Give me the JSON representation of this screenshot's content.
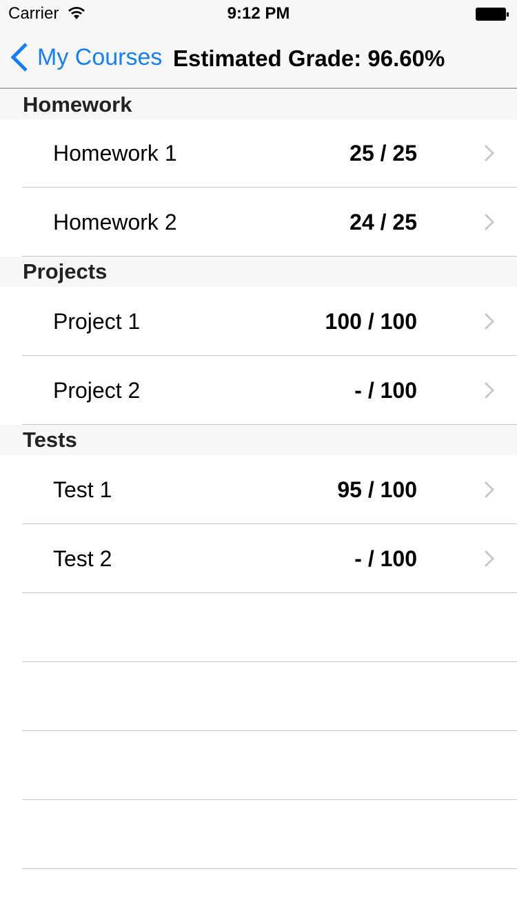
{
  "status_bar": {
    "carrier": "Carrier",
    "time": "9:12 PM"
  },
  "nav": {
    "back_label": "My Courses",
    "title": "Estimated Grade: 96.60%",
    "accent": "#157efb"
  },
  "sections": [
    {
      "title": "Homework",
      "items": [
        {
          "name": "Homework 1",
          "score": "25 / 25"
        },
        {
          "name": "Homework 2",
          "score": "24 / 25"
        }
      ]
    },
    {
      "title": "Projects",
      "items": [
        {
          "name": "Project 1",
          "score": "100 / 100"
        },
        {
          "name": "Project 2",
          "score": "- / 100"
        }
      ]
    },
    {
      "title": "Tests",
      "items": [
        {
          "name": "Test 1",
          "score": "95 / 100"
        },
        {
          "name": "Test 2",
          "score": "- / 100"
        }
      ]
    }
  ]
}
